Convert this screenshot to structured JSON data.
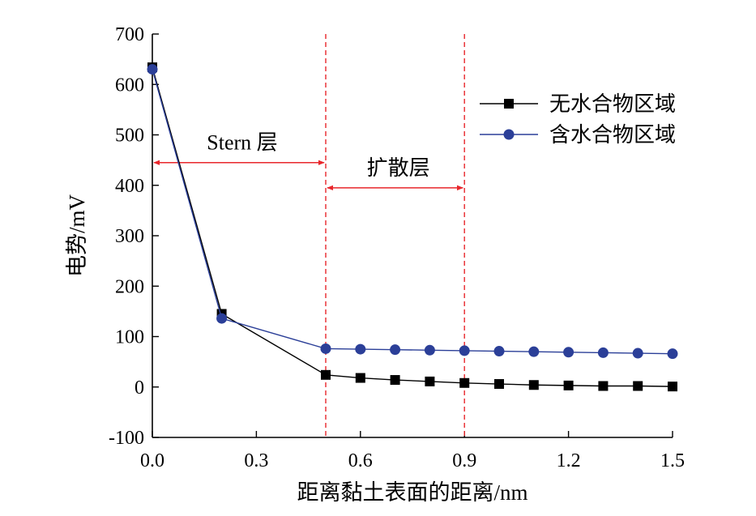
{
  "chart_data": {
    "type": "line",
    "xlabel": "距离黏土表面的距离/nm",
    "ylabel": "电势/mV",
    "xlim": [
      0.0,
      1.5
    ],
    "ylim": [
      -100,
      700
    ],
    "x_ticks": [
      0.0,
      0.3,
      0.6,
      0.9,
      1.2,
      1.5
    ],
    "x_tick_labels": [
      "0.0",
      "0.3",
      "0.6",
      "0.9",
      "1.2",
      "1.5"
    ],
    "y_ticks": [
      -100,
      0,
      100,
      200,
      300,
      400,
      500,
      600,
      700
    ],
    "y_tick_labels": [
      "-100",
      "0",
      "100",
      "200",
      "300",
      "400",
      "500",
      "600",
      "700"
    ],
    "grid": false,
    "legend_position": "top-right",
    "series": [
      {
        "name": "无水合物区域",
        "color": "#000000",
        "marker": "square",
        "x": [
          0.0,
          0.2,
          0.5,
          0.6,
          0.7,
          0.8,
          0.9,
          1.0,
          1.1,
          1.2,
          1.3,
          1.4,
          1.5
        ],
        "y": [
          634,
          145,
          24,
          18,
          14,
          11,
          8,
          6,
          4,
          3,
          2,
          2,
          1
        ]
      },
      {
        "name": "含水合物区域",
        "color": "#2b3f98",
        "marker": "circle",
        "x": [
          0.0,
          0.2,
          0.5,
          0.6,
          0.7,
          0.8,
          0.9,
          1.0,
          1.1,
          1.2,
          1.3,
          1.4,
          1.5
        ],
        "y": [
          630,
          136,
          76,
          75,
          74,
          73,
          72,
          71,
          70,
          69,
          68,
          67,
          66
        ]
      }
    ],
    "reference_lines": [
      {
        "axis": "x",
        "value": 0.5,
        "color": "#e8262b",
        "style": "dashed"
      },
      {
        "axis": "x",
        "value": 0.9,
        "color": "#e8262b",
        "style": "dashed"
      }
    ],
    "annotations": [
      {
        "text": "Stern 层",
        "x_range": [
          0.0,
          0.5
        ],
        "arrow_y": 445,
        "color": "#e8262b"
      },
      {
        "text": "扩散层",
        "x_range": [
          0.5,
          0.9
        ],
        "arrow_y": 395,
        "color": "#e8262b"
      }
    ]
  }
}
